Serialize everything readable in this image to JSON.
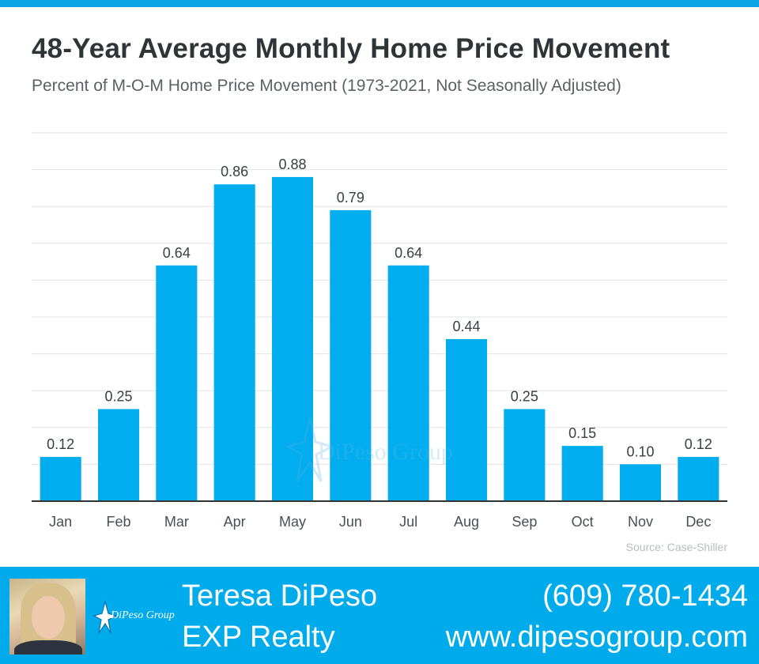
{
  "header": {
    "title": "48-Year Average Monthly Home Price Movement",
    "subtitle": "Percent of M-O-M Home Price Movement  (1973-2021, Not Seasonally Adjusted)"
  },
  "chart_data": {
    "type": "bar",
    "title": "48-Year Average Monthly Home Price Movement",
    "subtitle": "Percent of M-O-M Home Price Movement  (1973-2021, Not Seasonally Adjusted)",
    "categories": [
      "Jan",
      "Feb",
      "Mar",
      "Apr",
      "May",
      "Jun",
      "Jul",
      "Aug",
      "Sep",
      "Oct",
      "Nov",
      "Dec"
    ],
    "values": [
      0.12,
      0.25,
      0.64,
      0.86,
      0.88,
      0.79,
      0.64,
      0.44,
      0.25,
      0.15,
      0.1,
      0.12
    ],
    "value_labels": [
      "0.12",
      "0.25",
      "0.64",
      "0.86",
      "0.88",
      "0.79",
      "0.64",
      "0.44",
      "0.25",
      "0.15",
      "0.10",
      "0.12"
    ],
    "ylim": [
      0,
      1.0
    ],
    "grid": true,
    "bar_color": "#00adef",
    "xlabel": "",
    "ylabel": ""
  },
  "source": "Source: Case-Shiller",
  "watermark": {
    "text": "DiPeso Group"
  },
  "footer": {
    "background": "#00abeb",
    "agent_name": "Teresa DiPeso",
    "company": "EXP Realty",
    "phone": "(609) 780-1434",
    "website": "www.dipesogroup.com",
    "logo_text": "DiPeso Group"
  }
}
